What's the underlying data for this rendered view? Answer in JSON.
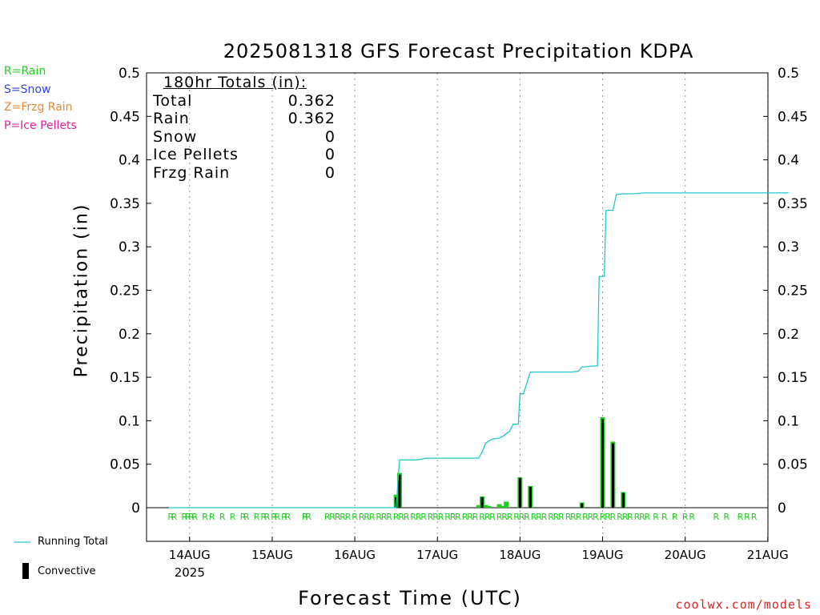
{
  "title": "2025081318 GFS Forecast Precipitation KDPA",
  "ylabel": "Precipitation (in)",
  "xlabel": "Forecast Time (UTC)",
  "credit": "coolwx.com/models",
  "legend_types": [
    {
      "label": "R=Rain",
      "color": "#22cc22"
    },
    {
      "label": "S=Snow",
      "color": "#3344dd"
    },
    {
      "label": "Z=Frzg Rain",
      "color": "#ee8833"
    },
    {
      "label": "P=Ice Pellets",
      "color": "#dd2299"
    }
  ],
  "bottom_legend": {
    "running_total": "Running Total",
    "convective": "Convective",
    "running_color": "#22c8c8"
  },
  "totals": {
    "heading": "180hr Totals (in):",
    "rows": [
      {
        "label": "Total",
        "value": "0.362"
      },
      {
        "label": "Rain",
        "value": "0.362"
      },
      {
        "label": "Snow",
        "value": "0"
      },
      {
        "label": "Ice Pellets",
        "value": "0"
      },
      {
        "label": "Frzg Rain",
        "value": "0"
      }
    ]
  },
  "chart_data": {
    "type": "bar",
    "title": "2025081318 GFS Forecast Precipitation KDPA",
    "xlabel": "Forecast Time (UTC)",
    "ylabel": "Precipitation (in)",
    "ylim": [
      0,
      0.5
    ],
    "yticks": [
      "0",
      "0.05",
      "0.1",
      "0.15",
      "0.2",
      "0.25",
      "0.3",
      "0.35",
      "0.4",
      "0.45",
      "0.5"
    ],
    "xtick_labels": [
      "14AUG",
      "15AUG",
      "16AUG",
      "17AUG",
      "18AUG",
      "19AUG",
      "20AUG",
      "21AUG"
    ],
    "year_label": "2025",
    "x_unit": "forecast hour from 2025-08-13 18Z",
    "xlim": [
      0,
      180
    ],
    "precip_bars": [
      {
        "x": 66,
        "value": 0.015
      },
      {
        "x": 67,
        "value": 0.04
      },
      {
        "x": 90,
        "value": 0.003
      },
      {
        "x": 91,
        "value": 0.013
      },
      {
        "x": 92,
        "value": 0.003
      },
      {
        "x": 93,
        "value": 0.002
      },
      {
        "x": 96,
        "value": 0.004
      },
      {
        "x": 97,
        "value": 0.002
      },
      {
        "x": 98,
        "value": 0.007
      },
      {
        "x": 102,
        "value": 0.035
      },
      {
        "x": 105,
        "value": 0.025
      },
      {
        "x": 120,
        "value": 0.006
      },
      {
        "x": 126,
        "value": 0.104
      },
      {
        "x": 129,
        "value": 0.076
      },
      {
        "x": 132,
        "value": 0.018
      }
    ],
    "convective_bars": [
      {
        "x": 66,
        "value": 0.012
      },
      {
        "x": 67,
        "value": 0.038
      },
      {
        "x": 91,
        "value": 0.012
      },
      {
        "x": 102,
        "value": 0.034
      },
      {
        "x": 105,
        "value": 0.024
      },
      {
        "x": 120,
        "value": 0.005
      },
      {
        "x": 126,
        "value": 0.102
      },
      {
        "x": 129,
        "value": 0.074
      },
      {
        "x": 132,
        "value": 0.017
      }
    ],
    "running_total": [
      [
        0,
        0
      ],
      [
        66,
        0
      ],
      [
        66.3,
        0.015
      ],
      [
        67,
        0.055
      ],
      [
        72,
        0.055
      ],
      [
        75,
        0.057
      ],
      [
        90,
        0.057
      ],
      [
        91,
        0.064
      ],
      [
        92,
        0.074
      ],
      [
        93,
        0.077
      ],
      [
        94,
        0.079
      ],
      [
        96,
        0.08
      ],
      [
        97,
        0.082
      ],
      [
        98,
        0.085
      ],
      [
        99,
        0.088
      ],
      [
        100,
        0.096
      ],
      [
        101.5,
        0.096
      ],
      [
        102,
        0.131
      ],
      [
        103,
        0.131
      ],
      [
        105,
        0.156
      ],
      [
        117,
        0.156
      ],
      [
        119,
        0.157
      ],
      [
        120,
        0.162
      ],
      [
        121,
        0.162
      ],
      [
        123,
        0.163
      ],
      [
        124.5,
        0.163
      ],
      [
        125,
        0.266
      ],
      [
        126.5,
        0.266
      ],
      [
        127,
        0.342
      ],
      [
        129,
        0.342
      ],
      [
        130,
        0.36
      ],
      [
        132,
        0.361
      ],
      [
        135,
        0.361
      ],
      [
        138,
        0.362
      ],
      [
        180,
        0.362
      ]
    ],
    "precip_type_markers": {
      "label": "R",
      "x": [
        0.5,
        1.5,
        4.5,
        5.5,
        6.5,
        7.5,
        10.5,
        12.5,
        15.5,
        18.5,
        21.5,
        22.5,
        25.5,
        27.5,
        28.5,
        30.5,
        31.5,
        33.5,
        34.5,
        39.5,
        40.5,
        46,
        47.5,
        49,
        50.5,
        52,
        54,
        56,
        57.5,
        59,
        61,
        62.5,
        64,
        66,
        67.5,
        69,
        71,
        72.5,
        74,
        76,
        77.5,
        79,
        81,
        82.5,
        84,
        86,
        87.5,
        89,
        91,
        92.5,
        94,
        96,
        97.5,
        99,
        101,
        102.5,
        104,
        106,
        107.5,
        109,
        111,
        112.5,
        114,
        116,
        117.5,
        119,
        121,
        122.5,
        124,
        126,
        127.5,
        129,
        131,
        132.5,
        134,
        136,
        137.5,
        139,
        141.5,
        144,
        147,
        150,
        152,
        159,
        162,
        166,
        168,
        170
      ]
    }
  }
}
